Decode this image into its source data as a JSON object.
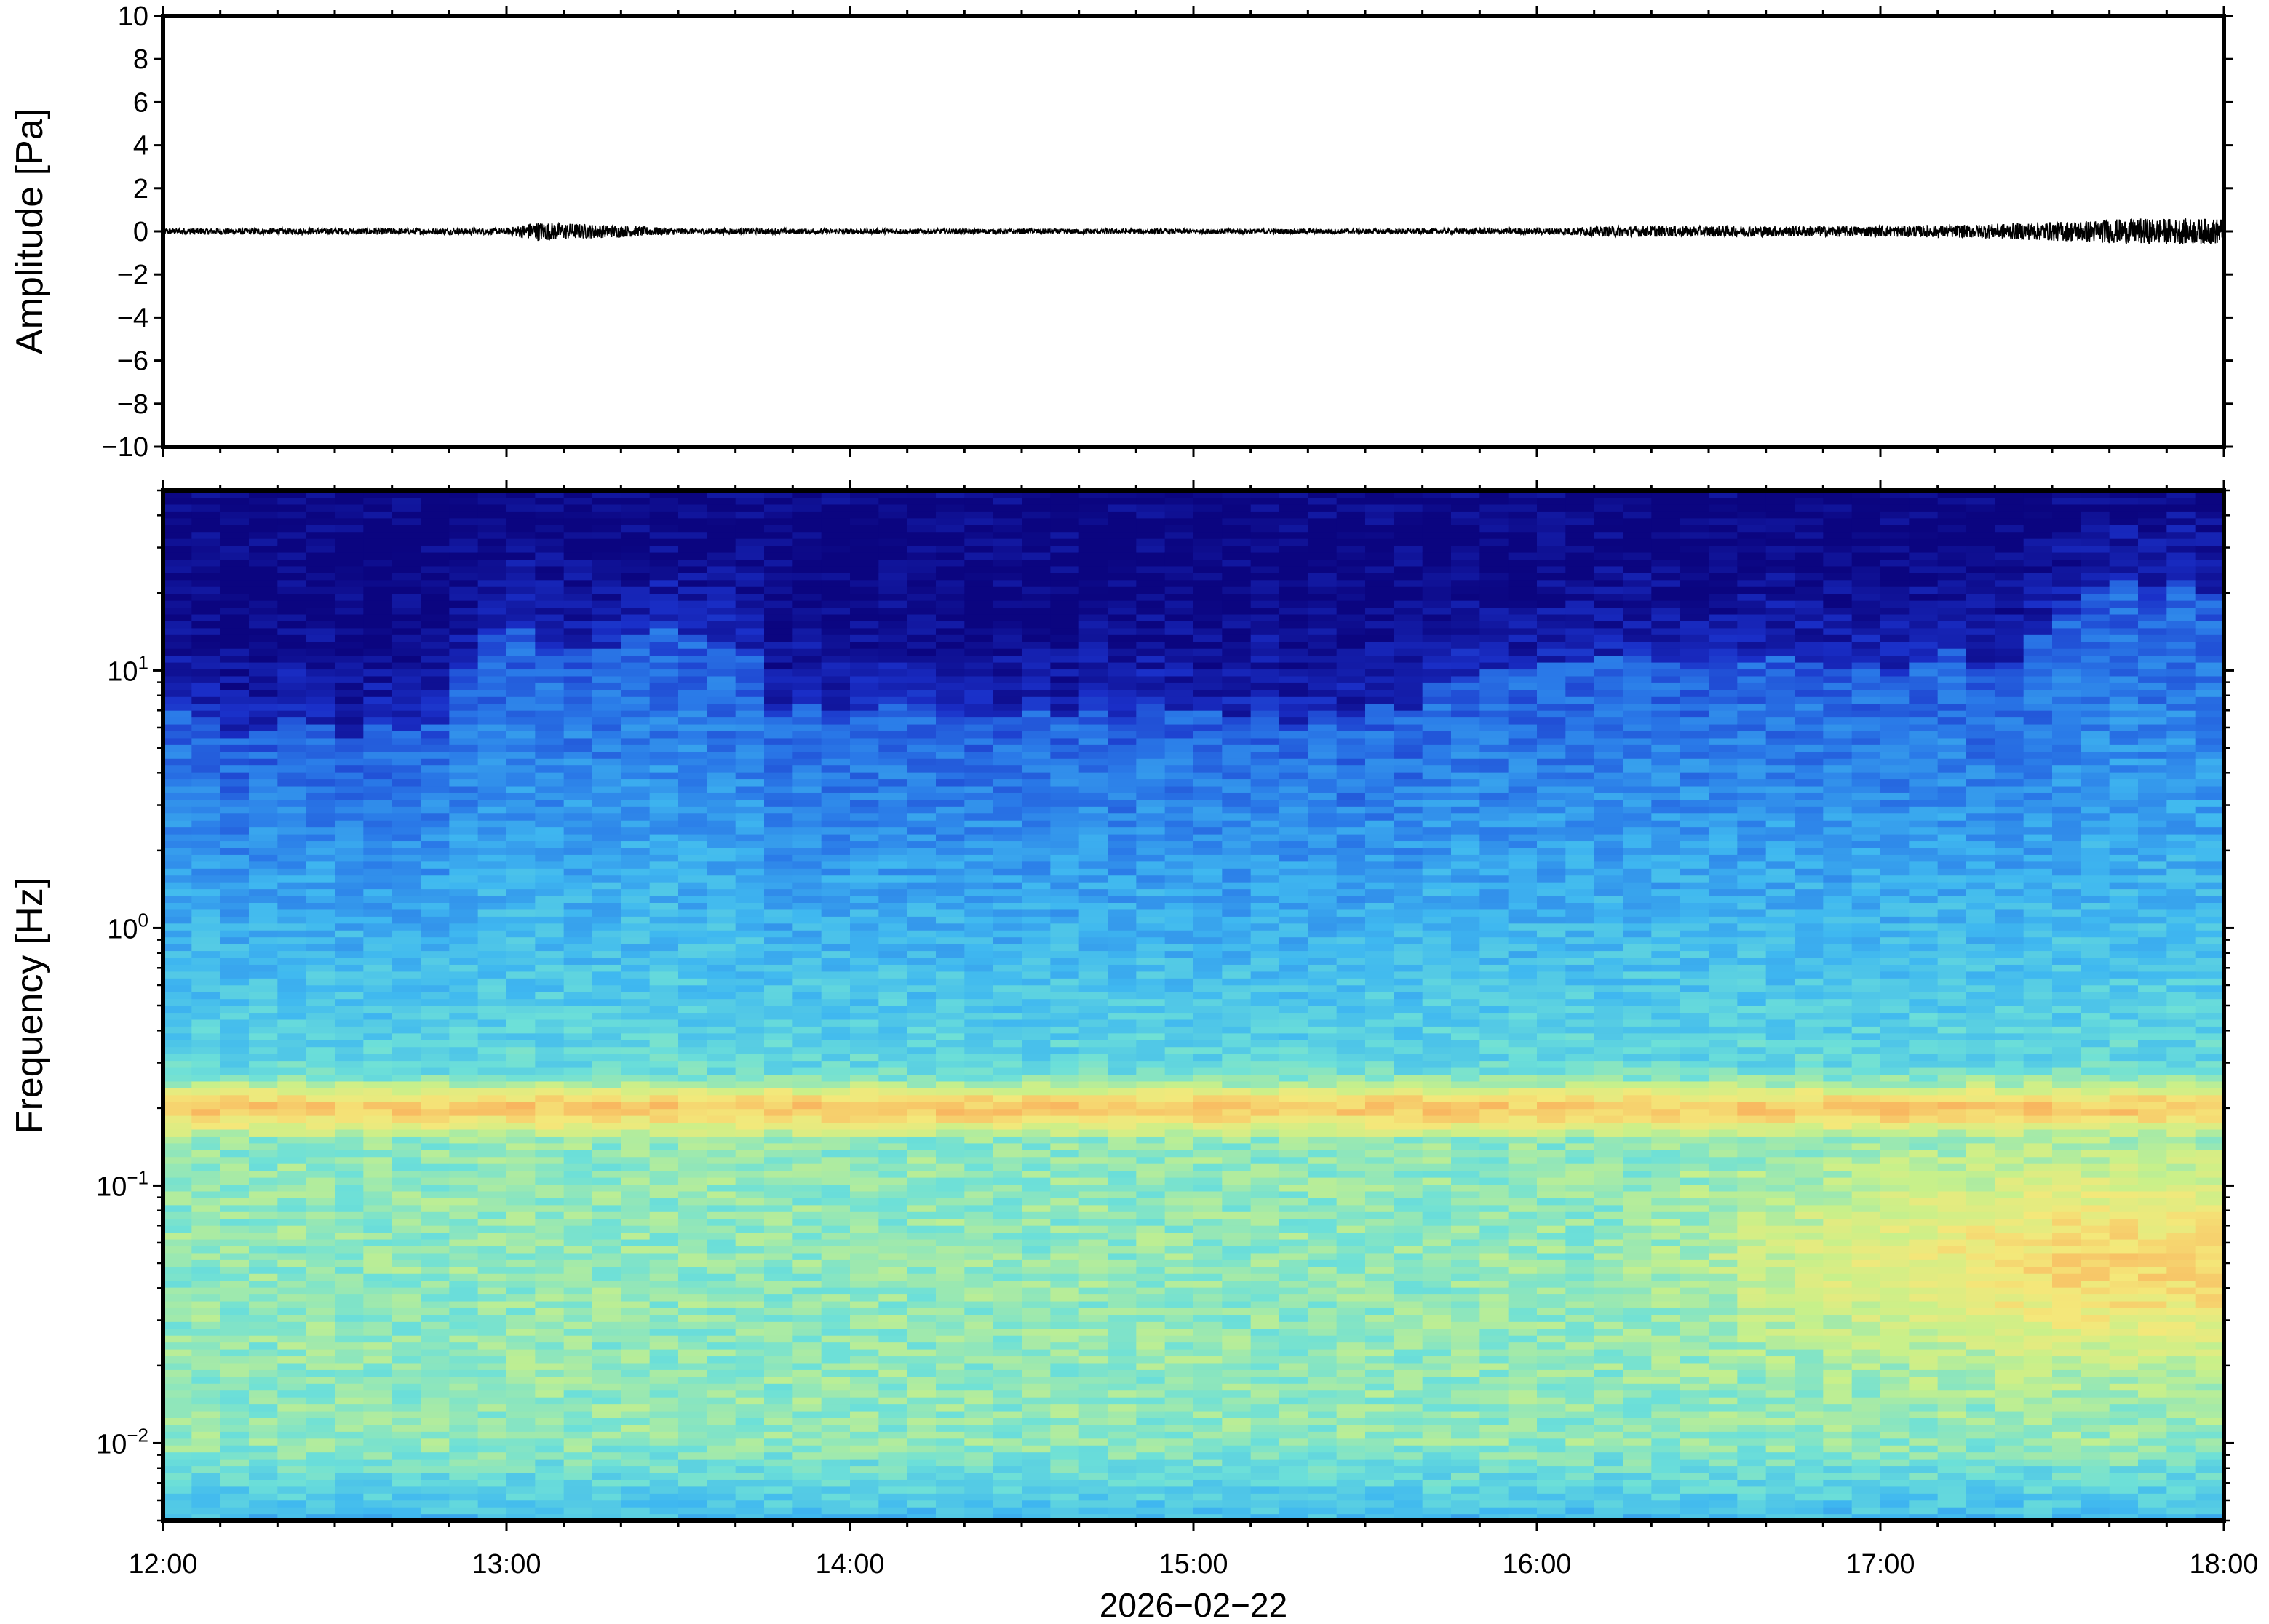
{
  "chart_data": [
    {
      "type": "line",
      "ylabel": "Amplitude [Pa]",
      "ylim": [
        -10,
        10
      ],
      "yticks": [
        10,
        8,
        6,
        4,
        2,
        0,
        -2,
        -4,
        -6,
        -8,
        -10
      ],
      "ytick_labels": [
        "10",
        "8",
        "6",
        "4",
        "2",
        "0",
        "−2",
        "−4",
        "−6",
        "−8",
        "−10"
      ],
      "x_range": [
        "12:00",
        "18:00"
      ],
      "series": [
        {
          "color": "#000000",
          "time": [
            "12:00",
            "12:30",
            "13:00",
            "13:05",
            "13:30",
            "14:00",
            "14:30",
            "15:00",
            "15:30",
            "16:00",
            "16:15",
            "16:30",
            "17:00",
            "17:15",
            "17:30",
            "17:45",
            "18:00"
          ],
          "amplitude_envelope": [
            0.15,
            0.15,
            0.15,
            0.45,
            0.15,
            0.12,
            0.12,
            0.12,
            0.12,
            0.15,
            0.25,
            0.25,
            0.25,
            0.3,
            0.45,
            0.6,
            0.6
          ]
        }
      ]
    },
    {
      "type": "heatmap",
      "ylabel": "Frequency [Hz]",
      "y_scale": "log",
      "ylim": [
        0.005,
        50
      ],
      "yticks": [
        0.01,
        0.1,
        1,
        10
      ],
      "ytick_labels": [
        {
          "base": "10",
          "exp": "−2"
        },
        {
          "base": "10",
          "exp": "−1"
        },
        {
          "base": "10",
          "exp": "0"
        },
        {
          "base": "10",
          "exp": "1"
        }
      ],
      "xlabel": "2026−02−22",
      "xticks": [
        "12:00",
        "13:00",
        "14:00",
        "15:00",
        "16:00",
        "17:00",
        "18:00"
      ],
      "colormap": [
        "#0b0580",
        "#1a2fc8",
        "#2a7ae8",
        "#3fb8f0",
        "#6de0d8",
        "#c8f08a",
        "#f4e87a",
        "#f8b860",
        "#f48a4a"
      ],
      "features": {
        "microbarom_band_hz": 0.2,
        "low_frequency_energy_increases_after": "16:15",
        "high_frequency_cutoff_hz": [
          {
            "time": "12:00",
            "hz": 6
          },
          {
            "time": "12:48",
            "hz": 6
          },
          {
            "time": "12:55",
            "hz": 14
          },
          {
            "time": "13:42",
            "hz": 14
          },
          {
            "time": "13:48",
            "hz": 7
          },
          {
            "time": "15:35",
            "hz": 7
          },
          {
            "time": "15:45",
            "hz": 11
          },
          {
            "time": "17:25",
            "hz": 11
          },
          {
            "time": "17:30",
            "hz": 18
          },
          {
            "time": "18:00",
            "hz": 22
          }
        ]
      }
    }
  ]
}
